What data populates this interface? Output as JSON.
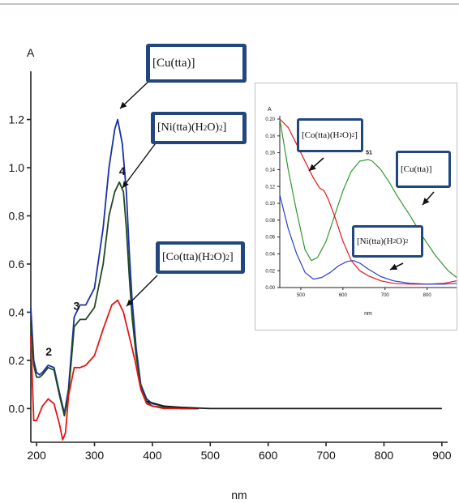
{
  "chart_data": [
    {
      "type": "line",
      "title": "",
      "ylabel": "A",
      "xlabel": "nm",
      "xlim": [
        190,
        910
      ],
      "ylim": [
        -0.14,
        1.36
      ],
      "xticks": [
        200,
        300,
        400,
        500,
        600,
        700,
        800,
        900
      ],
      "xtick_labels": [
        "200",
        "300",
        "400",
        "500",
        "600",
        "700",
        "800",
        "900"
      ],
      "yticks": [
        0.0,
        0.2,
        0.4,
        0.6,
        0.8,
        1.0,
        1.2
      ],
      "ytick_labels": [
        "0.0",
        "0.2",
        "0.4",
        "0.6",
        "0.8",
        "1.0",
        "1.2"
      ],
      "grid": false,
      "series": [
        {
          "color": "#1a2fa8",
          "x": [
            190,
            195,
            200,
            205,
            210,
            220,
            230,
            240,
            248,
            255,
            265,
            275,
            285,
            300,
            315,
            325,
            335,
            340,
            348,
            355,
            360,
            365,
            372,
            380,
            390,
            400,
            420,
            450,
            480
          ],
          "y": [
            0.42,
            0.2,
            0.15,
            0.14,
            0.15,
            0.18,
            0.17,
            0.06,
            -0.02,
            0.08,
            0.38,
            0.43,
            0.43,
            0.5,
            0.75,
            1.0,
            1.16,
            1.2,
            1.1,
            0.9,
            0.65,
            0.45,
            0.25,
            0.1,
            0.04,
            0.02,
            0.01,
            0.0,
            0.0
          ]
        },
        {
          "color": "#1d4a1d",
          "x": [
            190,
            195,
            200,
            205,
            210,
            220,
            230,
            240,
            248,
            255,
            265,
            275,
            285,
            300,
            315,
            325,
            335,
            343,
            350,
            355,
            360,
            365,
            372,
            380,
            390,
            400,
            420,
            450,
            480
          ],
          "y": [
            0.35,
            0.18,
            0.13,
            0.13,
            0.14,
            0.17,
            0.16,
            0.05,
            -0.03,
            0.06,
            0.34,
            0.37,
            0.37,
            0.42,
            0.6,
            0.8,
            0.9,
            0.94,
            0.9,
            0.75,
            0.55,
            0.38,
            0.22,
            0.09,
            0.03,
            0.01,
            0.005,
            0.0,
            0.0
          ]
        },
        {
          "color": "#e61515",
          "x": [
            190,
            195,
            200,
            205,
            210,
            220,
            230,
            240,
            245,
            250,
            255,
            265,
            275,
            285,
            300,
            315,
            330,
            340,
            350,
            360,
            370,
            380,
            390,
            400,
            420,
            450,
            480
          ],
          "y": [
            0.3,
            -0.05,
            -0.05,
            -0.02,
            0.01,
            0.04,
            0.02,
            -0.07,
            -0.13,
            -0.1,
            0.05,
            0.17,
            0.17,
            0.18,
            0.22,
            0.33,
            0.43,
            0.45,
            0.4,
            0.3,
            0.2,
            0.08,
            0.02,
            0.01,
            0.0,
            0.0,
            0.0
          ]
        },
        {
          "color": "#1a1a1a",
          "x": [
            390,
            420,
            450,
            500,
            550,
            600,
            650,
            700,
            750,
            800,
            850,
            900
          ],
          "y": [
            0.03,
            0.01,
            0.005,
            0.0,
            0.0,
            0.0,
            0.0,
            0.0,
            0.0,
            0.0,
            0.0,
            0.0
          ]
        }
      ],
      "peak_labels": [
        {
          "text": "2",
          "x": 221,
          "y": 0.22
        },
        {
          "text": "3",
          "x": 269,
          "y": 0.41
        },
        {
          "text": "4",
          "x": 348,
          "y": 0.97
        }
      ],
      "callouts": [
        {
          "text": "[Cu(tta)]"
        },
        {
          "text": "[Ni(tta)(H",
          "sub": "2",
          "text2": "O)",
          "sub2": "2",
          "text3": "]"
        },
        {
          "text": "[Co(tta)(H",
          "sub": "2",
          "text2": "O)",
          "sub2": "2",
          "text3": "]"
        }
      ]
    },
    {
      "type": "line",
      "title": "",
      "ylabel": "A",
      "xlabel": "nm",
      "xlim": [
        450,
        870
      ],
      "ylim": [
        0,
        0.2
      ],
      "xticks": [
        500,
        600,
        700,
        800
      ],
      "xtick_labels": [
        "500",
        "600",
        "700",
        "800"
      ],
      "yticks": [
        0.0,
        0.02,
        0.04,
        0.06,
        0.08,
        0.1,
        0.12,
        0.14,
        0.16,
        0.18,
        0.2
      ],
      "ytick_labels": [
        "0.00",
        "0.02",
        "0.04",
        "0.06",
        "0.08",
        "0.10",
        "0.12",
        "0.14",
        "0.16",
        "0.18",
        "0.20"
      ],
      "grid": false,
      "series": [
        {
          "color": "#2e9a2e",
          "x": [
            450,
            470,
            490,
            510,
            525,
            540,
            560,
            580,
            600,
            620,
            640,
            660,
            670,
            690,
            710,
            730,
            760,
            790,
            820,
            850,
            870
          ],
          "y": [
            0.2,
            0.14,
            0.09,
            0.045,
            0.032,
            0.036,
            0.055,
            0.085,
            0.115,
            0.138,
            0.15,
            0.152,
            0.15,
            0.14,
            0.125,
            0.108,
            0.085,
            0.06,
            0.038,
            0.02,
            0.012
          ]
        },
        {
          "color": "#e61515",
          "x": [
            450,
            470,
            490,
            510,
            530,
            545,
            555,
            565,
            580,
            600,
            620,
            640,
            660,
            690,
            720,
            760,
            800,
            840,
            870
          ],
          "y": [
            0.2,
            0.19,
            0.17,
            0.15,
            0.13,
            0.118,
            0.115,
            0.105,
            0.085,
            0.055,
            0.032,
            0.02,
            0.014,
            0.008,
            0.005,
            0.004,
            0.004,
            0.005,
            0.008
          ]
        },
        {
          "color": "#2b3fd0",
          "x": [
            450,
            470,
            490,
            510,
            530,
            550,
            570,
            590,
            610,
            625,
            640,
            660,
            690,
            720,
            760,
            800,
            840,
            870
          ],
          "y": [
            0.11,
            0.07,
            0.04,
            0.018,
            0.01,
            0.012,
            0.018,
            0.026,
            0.031,
            0.032,
            0.029,
            0.022,
            0.013,
            0.008,
            0.005,
            0.004,
            0.004,
            0.005
          ]
        }
      ],
      "peak_labels": [
        {
          "text": "51",
          "x": 662,
          "y": 0.158
        }
      ],
      "callouts": [
        {
          "text": "[Co(tta)(H",
          "sub": "2",
          "text2": "O)",
          "sub2": "2",
          "text3": "]"
        },
        {
          "text": "[Cu(tta)]"
        },
        {
          "text": "[Ni(tta)(H",
          "sub": "2",
          "text2": "O)",
          "sub2": "2",
          "text3": ""
        }
      ]
    }
  ]
}
